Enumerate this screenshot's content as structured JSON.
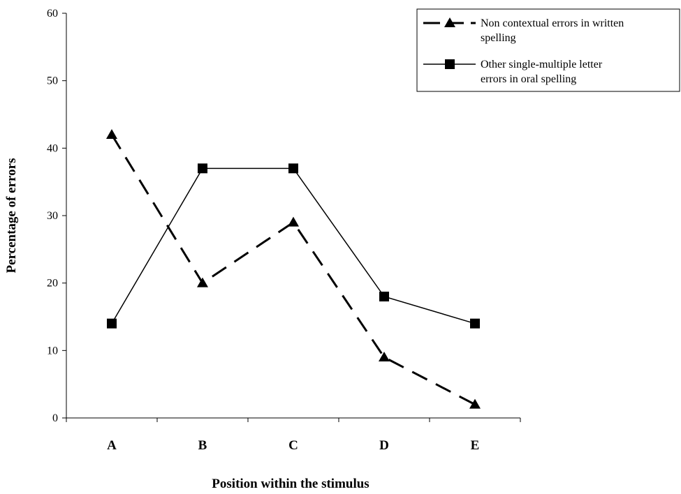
{
  "chart_data": {
    "type": "line",
    "title": "",
    "xlabel": "Position within the stimulus",
    "ylabel": "Percentage of errors",
    "categories": [
      "A",
      "B",
      "C",
      "D",
      "E"
    ],
    "ylim": [
      0,
      60
    ],
    "yticks": [
      0,
      10,
      20,
      30,
      40,
      50,
      60
    ],
    "grid": false,
    "legend_position": "top-right",
    "series": [
      {
        "name": "Non contextual errors in written spelling",
        "legend_lines": [
          "Non contextual errors in written",
          "spelling"
        ],
        "values": [
          42,
          20,
          29,
          9,
          2
        ],
        "line_style": "dashed",
        "marker": "triangle",
        "color": "#000000"
      },
      {
        "name": "Other single-multiple letter errors in oral spelling",
        "legend_lines": [
          "Other single-multiple letter",
          "errors in oral spelling"
        ],
        "values": [
          14,
          37,
          37,
          18,
          14
        ],
        "line_style": "solid",
        "marker": "square",
        "color": "#000000"
      }
    ]
  }
}
